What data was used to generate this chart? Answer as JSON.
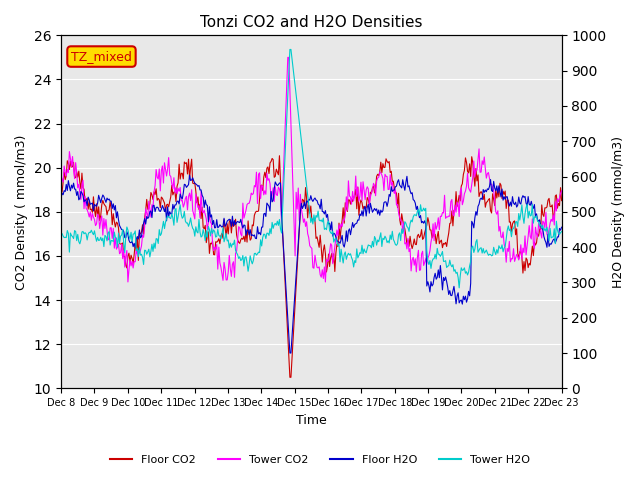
{
  "title": "Tonzi CO2 and H2O Densities",
  "xlabel": "Time",
  "ylabel_left": "CO2 Density ( mmol/m3)",
  "ylabel_right": "H2O Density (mmol/m3)",
  "annotation_text": "TZ_mixed",
  "annotation_color": "#cc0000",
  "annotation_bg": "#ffdd00",
  "ylim_left": [
    10,
    26
  ],
  "ylim_right": [
    0,
    1000
  ],
  "yticks_left": [
    10,
    12,
    14,
    16,
    18,
    20,
    22,
    24,
    26
  ],
  "yticks_right": [
    0,
    100,
    200,
    300,
    400,
    500,
    600,
    700,
    800,
    900,
    1000
  ],
  "bg_color": "#e8e8e8",
  "floor_co2_color": "#cc0000",
  "tower_co2_color": "#ff00ff",
  "floor_h2o_color": "#0000cc",
  "tower_h2o_color": "#00cccc",
  "legend_labels": [
    "Floor CO2",
    "Tower CO2",
    "Floor H2O",
    "Tower H2O"
  ],
  "xtick_labels": [
    "Dec 8",
    "Dec 9",
    "Dec 10",
    "Dec 11",
    "Dec 12",
    "Dec 13",
    "Dec 14",
    "Dec 15",
    "Dec 16",
    "Dec 17",
    "Dec 18",
    "Dec 19",
    "Dec 20",
    "Dec 21",
    "Dec 22",
    "Dec 23"
  ],
  "n_points": 480,
  "seed": 42
}
